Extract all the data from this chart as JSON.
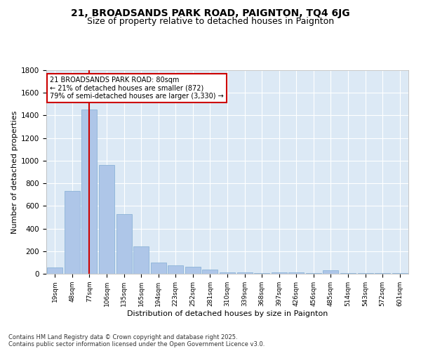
{
  "title1": "21, BROADSANDS PARK ROAD, PAIGNTON, TQ4 6JG",
  "title2": "Size of property relative to detached houses in Paignton",
  "xlabel": "Distribution of detached houses by size in Paignton",
  "ylabel": "Number of detached properties",
  "categories": [
    "19sqm",
    "48sqm",
    "77sqm",
    "106sqm",
    "135sqm",
    "165sqm",
    "194sqm",
    "223sqm",
    "252sqm",
    "281sqm",
    "310sqm",
    "339sqm",
    "368sqm",
    "397sqm",
    "426sqm",
    "456sqm",
    "485sqm",
    "514sqm",
    "543sqm",
    "572sqm",
    "601sqm"
  ],
  "values": [
    55,
    730,
    1450,
    960,
    530,
    245,
    100,
    75,
    60,
    40,
    15,
    10,
    5,
    15,
    10,
    5,
    30,
    5,
    5,
    5,
    5
  ],
  "bar_color": "#aec6e8",
  "bar_edge_color": "#8cb4d8",
  "vline_x_index": 2,
  "vline_color": "#cc0000",
  "annotation_text": "21 BROADSANDS PARK ROAD: 80sqm\n← 21% of detached houses are smaller (872)\n79% of semi-detached houses are larger (3,330) →",
  "annotation_box_color": "#ffffff",
  "annotation_box_edge": "#cc0000",
  "ylim": [
    0,
    1800
  ],
  "yticks": [
    0,
    200,
    400,
    600,
    800,
    1000,
    1200,
    1400,
    1600,
    1800
  ],
  "footer": "Contains HM Land Registry data © Crown copyright and database right 2025.\nContains public sector information licensed under the Open Government Licence v3.0.",
  "plot_bg_color": "#dce9f5",
  "fig_bg_color": "#ffffff",
  "title1_fontsize": 10,
  "title2_fontsize": 9,
  "xlabel_fontsize": 8,
  "ylabel_fontsize": 8
}
